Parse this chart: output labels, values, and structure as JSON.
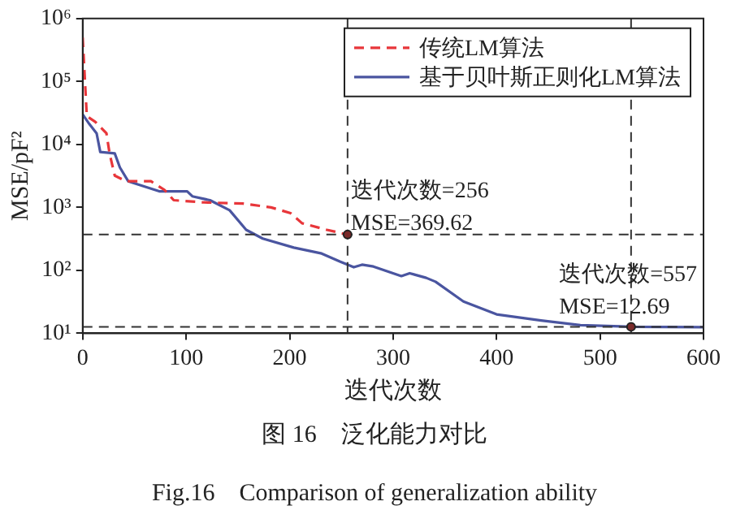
{
  "chart_data": {
    "type": "line",
    "title": "图 16　泛化能力对比",
    "subtitle": "Fig.16　Comparison of generalization ability",
    "xlabel": "迭代次数",
    "ylabel": "MSE/pF²",
    "log": "y",
    "xlim": [
      0,
      600
    ],
    "xticks": [
      0,
      100,
      200,
      300,
      400,
      500,
      600
    ],
    "ylim": [
      10,
      1000000
    ],
    "yticks": [
      {
        "value": 10,
        "label": "10¹"
      },
      {
        "value": 100,
        "label": "10²"
      },
      {
        "value": 1000,
        "label": "10³"
      },
      {
        "value": 10000,
        "label": "10⁴"
      },
      {
        "value": 100000,
        "label": "10⁵"
      },
      {
        "value": 1000000,
        "label": "10⁶"
      }
    ],
    "grid": false,
    "legend": "top right",
    "marker": "none",
    "series": [
      {
        "name": "传统LM算法",
        "color": "#e8363a",
        "line_style": "dashed",
        "x": [
          0,
          4,
          12,
          23,
          26,
          31,
          42,
          66,
          79,
          88,
          117,
          155,
          182,
          201,
          212,
          236,
          256
        ],
        "values": [
          500000,
          28000,
          23000,
          15000,
          7200,
          3200,
          2600,
          2600,
          1900,
          1300,
          1200,
          1150,
          1000,
          810,
          560,
          440,
          369.62
        ]
      },
      {
        "name": "基于贝叶斯正则化LM算法",
        "color": "#4a55a0",
        "line_style": "solid",
        "x": [
          0,
          6.5,
          13.5,
          17,
          31,
          36,
          44,
          74,
          101,
          106,
          123,
          142,
          158,
          174,
          204,
          231,
          249,
          262,
          270,
          281,
          308,
          316,
          332,
          341,
          368,
          400,
          443,
          481,
          530,
          600
        ],
        "values": [
          30000,
          21000,
          15000,
          7600,
          7200,
          4300,
          2600,
          1800,
          1800,
          1500,
          1300,
          900,
          440,
          320,
          230,
          185,
          137,
          112,
          123,
          115,
          81,
          90,
          76,
          66,
          32,
          20,
          16,
          13.5,
          12.69,
          12.5
        ]
      }
    ],
    "ref_lines": [
      {
        "axis": "x",
        "value": 256,
        "line_style": "dashed",
        "color": "#333333"
      },
      {
        "axis": "x",
        "value": 530,
        "line_style": "dashed",
        "color": "#333333"
      },
      {
        "axis": "y",
        "value": 369.62,
        "line_style": "dashed",
        "color": "#333333"
      },
      {
        "axis": "y",
        "value": 12.69,
        "line_style": "dashed",
        "color": "#333333"
      }
    ],
    "annotations": [
      {
        "text": "迭代次数=256\nMSE=369.62",
        "x": 256,
        "y": 369.62
      },
      {
        "text": "迭代次数=557\nMSE=12.69",
        "x": 530,
        "y": 12.69
      }
    ]
  }
}
